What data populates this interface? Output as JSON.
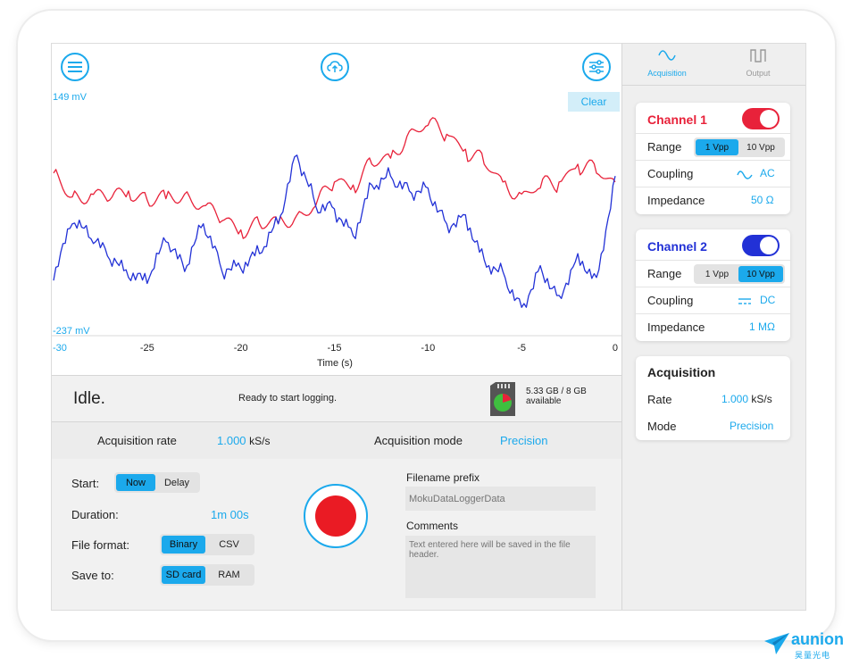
{
  "colors": {
    "accent": "#1ba9ec",
    "channel1": "#e8223a",
    "channel2": "#2231d6",
    "record": "#ea1b24"
  },
  "toolbar": {
    "menu_icon": "hamburger-menu-icon",
    "upload_icon": "cloud-upload-icon",
    "settings_icon": "sliders-icon"
  },
  "graph": {
    "clear_label": "Clear",
    "y_max_label": "149 mV",
    "y_min_label": "-237 mV",
    "x_ticks": [
      "-30",
      "-25",
      "-20",
      "-15",
      "-10",
      "-5",
      "0"
    ],
    "x_axis_label": "Time (s)"
  },
  "chart_data": {
    "type": "line",
    "xlabel": "Time (s)",
    "ylabel": "",
    "xlim": [
      -30,
      0
    ],
    "ylim": [
      -237,
      149
    ],
    "x": [
      -30,
      -29,
      -28,
      -27,
      -26,
      -25,
      -24,
      -23,
      -22,
      -21,
      -20,
      -19,
      -18,
      -17,
      -16,
      -15,
      -14,
      -13,
      -12,
      -11,
      -10,
      -9,
      -8,
      -7,
      -6,
      -5,
      -4,
      -3,
      -2,
      -1,
      0
    ],
    "series": [
      {
        "name": "Channel 1",
        "color": "#e8223a",
        "values": [
          25,
          -15,
          -10,
          -20,
          -5,
          -20,
          -18,
          -10,
          -30,
          -55,
          -70,
          -60,
          -60,
          -45,
          -30,
          10,
          5,
          40,
          50,
          95,
          105,
          90,
          65,
          40,
          10,
          -10,
          0,
          10,
          40,
          25,
          10
        ]
      },
      {
        "name": "Channel 2",
        "color": "#2231d6",
        "values": [
          -155,
          -60,
          -85,
          -120,
          -150,
          -160,
          -90,
          -140,
          -60,
          -140,
          -135,
          -110,
          -60,
          55,
          -30,
          -35,
          -80,
          5,
          20,
          -5,
          0,
          -60,
          -45,
          -120,
          -140,
          -200,
          -130,
          -180,
          -110,
          -150,
          20
        ]
      }
    ]
  },
  "status": {
    "state": "Idle.",
    "message": "Ready to start logging.",
    "storage_line1": "5.33 GB / 8 GB",
    "storage_line2": "available",
    "sd_icon": "sd-card-icon"
  },
  "acquisition_bar": {
    "rate_label": "Acquisition rate",
    "rate_value": "1.000",
    "rate_unit": "kS/s",
    "mode_label": "Acquisition mode",
    "mode_value": "Precision"
  },
  "logging": {
    "start_label": "Start:",
    "start_options": [
      "Now",
      "Delay"
    ],
    "start_selected": "Now",
    "duration_label": "Duration:",
    "duration_value": "1m 00s",
    "format_label": "File format:",
    "format_options": [
      "Binary",
      "CSV"
    ],
    "format_selected": "Binary",
    "save_label": "Save to:",
    "save_options": [
      "SD card",
      "RAM"
    ],
    "save_selected": "SD card",
    "filename_label": "Filename prefix",
    "filename_placeholder": "MokuDataLoggerData",
    "comments_label": "Comments",
    "comments_placeholder": "Text entered here will be saved in the file header."
  },
  "tabs": [
    {
      "label": "Acquisition",
      "icon": "sine-wave-icon",
      "active": true
    },
    {
      "label": "Output",
      "icon": "square-wave-icon",
      "active": false
    }
  ],
  "channel1": {
    "title": "Channel 1",
    "enabled": true,
    "range_label": "Range",
    "range_options": [
      "1 Vpp",
      "10 Vpp"
    ],
    "range_selected": "1 Vpp",
    "coupling_label": "Coupling",
    "coupling_value": "AC",
    "coupling_icon": "ac-wave-icon",
    "impedance_label": "Impedance",
    "impedance_value": "50 Ω"
  },
  "channel2": {
    "title": "Channel 2",
    "enabled": true,
    "range_label": "Range",
    "range_options": [
      "1 Vpp",
      "10 Vpp"
    ],
    "range_selected": "10 Vpp",
    "coupling_label": "Coupling",
    "coupling_value": "DC",
    "coupling_icon": "dc-icon",
    "impedance_label": "Impedance",
    "impedance_value": "1 MΩ"
  },
  "acquisition_card": {
    "title": "Acquisition",
    "rate_label": "Rate",
    "rate_value": "1.000",
    "rate_unit": "kS/s",
    "mode_label": "Mode",
    "mode_value": "Precision"
  },
  "brand": {
    "name": "aunion",
    "subtitle": "昊量光电",
    "logo_icon": "paper-plane-logo-icon"
  }
}
